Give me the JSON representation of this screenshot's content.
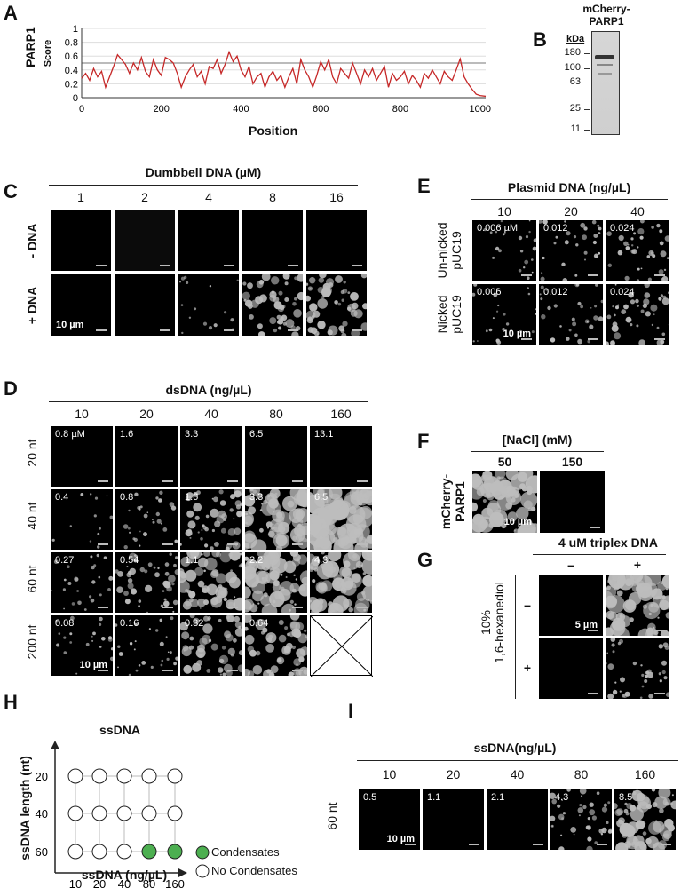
{
  "panels": {
    "a": "A",
    "b": "B",
    "c": "C",
    "d": "D",
    "e": "E",
    "f": "F",
    "g": "G",
    "h": "H",
    "i": "I"
  },
  "chart_data": {
    "type": "line",
    "xlabel": "Position",
    "ylabel": "Score",
    "row_label": "PARP1",
    "xlim": [
      0,
      1014
    ],
    "ylim": [
      0,
      1
    ],
    "xticks": [
      0,
      200,
      400,
      600,
      800,
      1000
    ],
    "yticks": [
      "0",
      "0.2",
      "0.4",
      "0.6",
      "0.8",
      "1"
    ],
    "threshold": 0.5,
    "series": [
      {
        "color": "#c62828",
        "x": [
          0,
          10,
          20,
          30,
          40,
          50,
          60,
          70,
          80,
          90,
          100,
          110,
          120,
          130,
          140,
          150,
          160,
          170,
          180,
          190,
          200,
          210,
          220,
          230,
          240,
          250,
          260,
          270,
          280,
          290,
          300,
          310,
          320,
          330,
          340,
          350,
          360,
          370,
          380,
          390,
          400,
          410,
          420,
          430,
          440,
          450,
          460,
          470,
          480,
          490,
          500,
          510,
          520,
          530,
          540,
          550,
          560,
          570,
          580,
          590,
          600,
          610,
          620,
          630,
          640,
          650,
          660,
          670,
          680,
          690,
          700,
          710,
          720,
          730,
          740,
          750,
          760,
          770,
          780,
          790,
          800,
          810,
          820,
          830,
          840,
          850,
          860,
          870,
          880,
          890,
          900,
          910,
          920,
          930,
          940,
          950,
          960,
          970,
          980,
          990,
          1000,
          1014
        ],
        "values": [
          0.28,
          0.35,
          0.25,
          0.42,
          0.3,
          0.38,
          0.15,
          0.3,
          0.45,
          0.62,
          0.55,
          0.48,
          0.35,
          0.5,
          0.4,
          0.58,
          0.38,
          0.3,
          0.55,
          0.4,
          0.32,
          0.58,
          0.55,
          0.5,
          0.35,
          0.15,
          0.3,
          0.4,
          0.48,
          0.3,
          0.38,
          0.2,
          0.45,
          0.42,
          0.55,
          0.35,
          0.48,
          0.66,
          0.52,
          0.6,
          0.4,
          0.3,
          0.45,
          0.2,
          0.3,
          0.35,
          0.15,
          0.3,
          0.38,
          0.25,
          0.32,
          0.15,
          0.3,
          0.42,
          0.2,
          0.55,
          0.4,
          0.3,
          0.15,
          0.32,
          0.52,
          0.4,
          0.55,
          0.3,
          0.2,
          0.42,
          0.35,
          0.28,
          0.5,
          0.35,
          0.2,
          0.4,
          0.3,
          0.42,
          0.25,
          0.35,
          0.45,
          0.15,
          0.35,
          0.25,
          0.3,
          0.38,
          0.2,
          0.32,
          0.25,
          0.15,
          0.35,
          0.28,
          0.4,
          0.3,
          0.2,
          0.38,
          0.3,
          0.25,
          0.4,
          0.56,
          0.3,
          0.2,
          0.12,
          0.05,
          0.03,
          0.02
        ]
      }
    ]
  },
  "gel": {
    "title_line1": "mCherry-",
    "title_line2": "PARP1",
    "unit": "kDa",
    "markers": [
      "180",
      "100",
      "63",
      "25",
      "11"
    ]
  },
  "c": {
    "header": "Dumbbell DNA (µM)",
    "cols": [
      "1",
      "2",
      "4",
      "8",
      "16"
    ],
    "rows": [
      "- DNA",
      "+ DNA"
    ],
    "scalebar": "10 µm"
  },
  "d": {
    "header": "dsDNA (ng/µL)",
    "cols": [
      "10",
      "20",
      "40",
      "80",
      "160"
    ],
    "rows": [
      "20 nt",
      "40 nt",
      "60 nt",
      "200 nt"
    ],
    "labels": [
      [
        "0.8 µM",
        "1.6",
        "3.3",
        "6.5",
        "13.1"
      ],
      [
        "0.4",
        "0.8",
        "1.6",
        "3.3",
        "6.5"
      ],
      [
        "0.27",
        "0.54",
        "1.1",
        "2.2",
        "4.3"
      ],
      [
        "0.08",
        "0.16",
        "0.32",
        "0.64",
        ""
      ]
    ],
    "scalebar": "10 µm"
  },
  "e": {
    "header": "Plasmid DNA (ng/µL)",
    "cols": [
      "10",
      "20",
      "40"
    ],
    "rows": [
      [
        "Un-nicked",
        "pUC19"
      ],
      [
        "Nicked",
        "pUC19"
      ]
    ],
    "labels": [
      [
        "0.006 µM",
        "0.012",
        "0.024"
      ],
      [
        "0.006",
        "0.012",
        "0.024"
      ]
    ],
    "scalebar": "10 µm"
  },
  "f": {
    "header": "[NaCl] (mM)",
    "cols": [
      "50",
      "150"
    ],
    "row": [
      "mCherry-",
      "PARP1"
    ],
    "scalebar": "10 µm"
  },
  "g": {
    "header": "4 uM triplex DNA",
    "cols": [
      "–",
      "+"
    ],
    "rowtitle": [
      "10%",
      "1,6-hexanediol"
    ],
    "rows": [
      "–",
      "+"
    ],
    "scalebar": "5 µm"
  },
  "h": {
    "header": "ssDNA",
    "ylabel": "ssDNA length (nt)",
    "xlabel": "ssDNA (ng/µL)",
    "xcats": [
      "10",
      "20",
      "40",
      "80",
      "160"
    ],
    "ycats": [
      "20",
      "40",
      "60"
    ],
    "condensate_color": "#4caf50",
    "legend": [
      "Condensates",
      "No Condensates"
    ],
    "grid": [
      [
        0,
        0,
        0,
        0,
        0
      ],
      [
        0,
        0,
        0,
        0,
        0
      ],
      [
        0,
        0,
        0,
        1,
        1
      ]
    ]
  },
  "i": {
    "header": "ssDNA(ng/µL)",
    "cols": [
      "10",
      "20",
      "40",
      "80",
      "160"
    ],
    "row": "60 nt",
    "labels": [
      "0.5",
      "1.1",
      "2.1",
      "4.3",
      "8.5"
    ],
    "scalebar": "10 µm"
  }
}
